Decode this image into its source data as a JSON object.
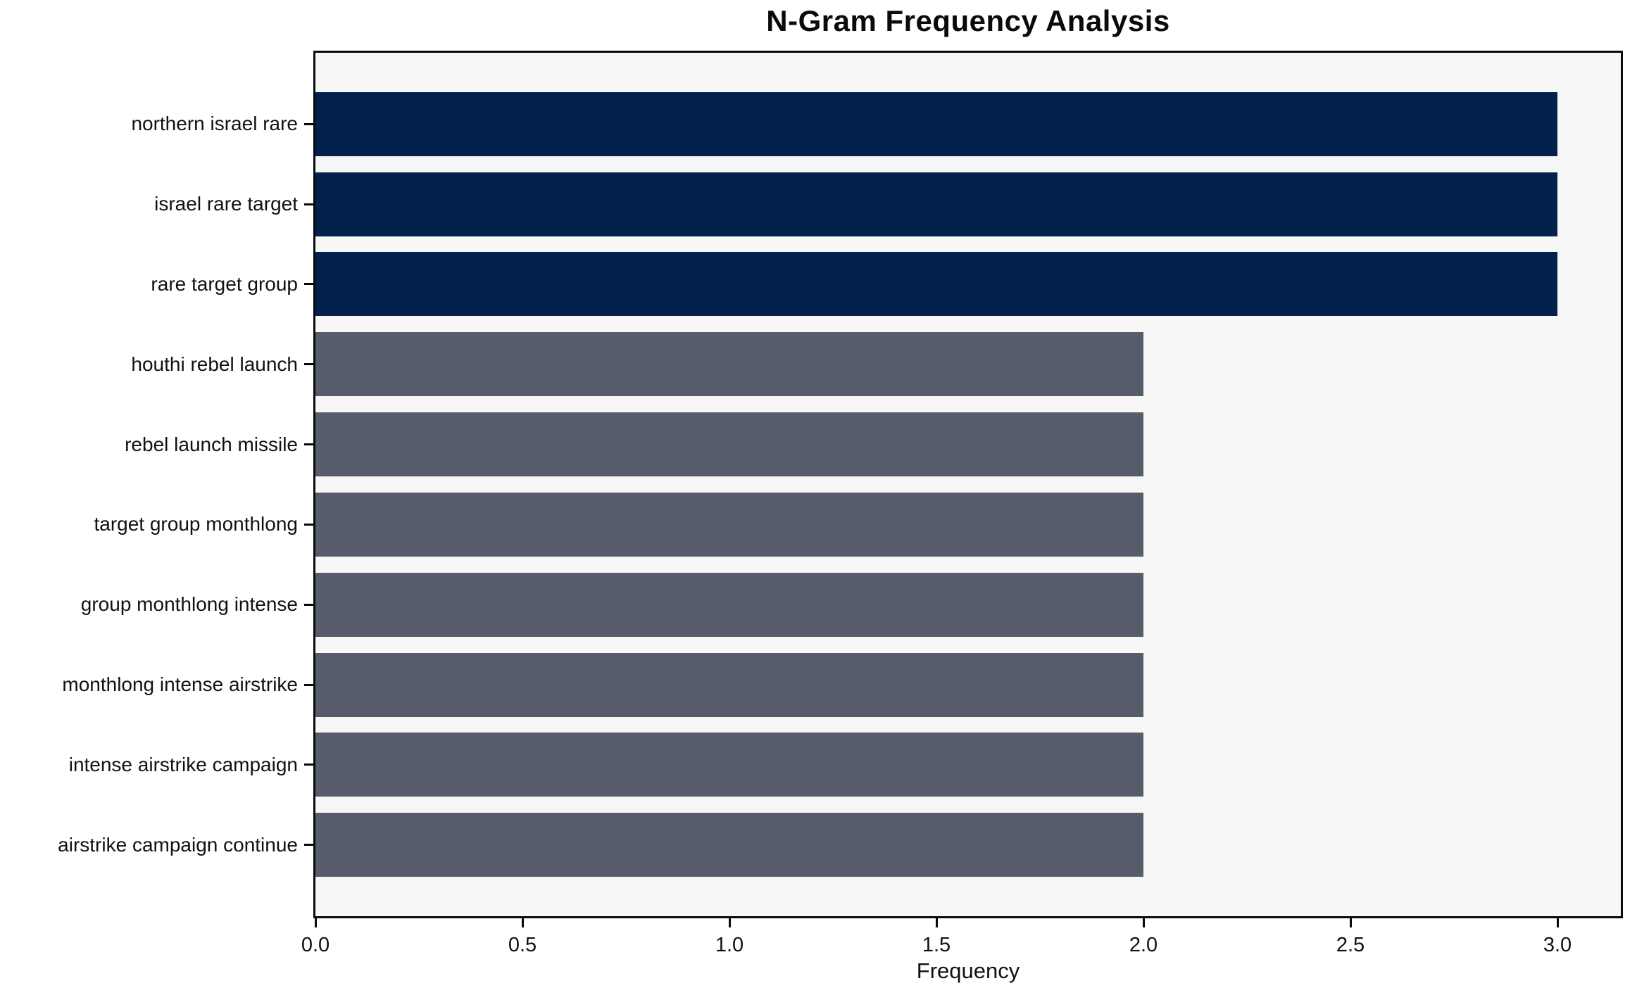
{
  "chart_data": {
    "type": "bar",
    "orientation": "horizontal",
    "title": "N-Gram Frequency Analysis",
    "xlabel": "Frequency",
    "ylabel": "",
    "categories": [
      "northern israel rare",
      "israel rare target",
      "rare target group",
      "houthi rebel launch",
      "rebel launch missile",
      "target group monthlong",
      "group monthlong intense",
      "monthlong intense airstrike",
      "intense airstrike campaign",
      "airstrike campaign continue"
    ],
    "values": [
      3,
      3,
      3,
      2,
      2,
      2,
      2,
      2,
      2,
      2
    ],
    "bar_colors": [
      "#02224d",
      "#02224d",
      "#02224d",
      "#575c6b",
      "#575c6b",
      "#575c6b",
      "#575c6b",
      "#575c6b",
      "#575c6b",
      "#575c6b"
    ],
    "xlim": [
      0,
      3.153
    ],
    "x_ticks": [
      {
        "value": 0.0,
        "label": "0.0"
      },
      {
        "value": 0.5,
        "label": "0.5"
      },
      {
        "value": 1.0,
        "label": "1.0"
      },
      {
        "value": 1.5,
        "label": "1.5"
      },
      {
        "value": 2.0,
        "label": "2.0"
      },
      {
        "value": 2.5,
        "label": "2.5"
      },
      {
        "value": 3.0,
        "label": "3.0"
      }
    ],
    "grid": false,
    "legend_position": "none",
    "colors": {
      "highlight": "#02224d",
      "default": "#575c6b",
      "plot_background": "#f7f7f8",
      "figure_background": "#ffffff",
      "spine": "#0a0a0a"
    }
  }
}
